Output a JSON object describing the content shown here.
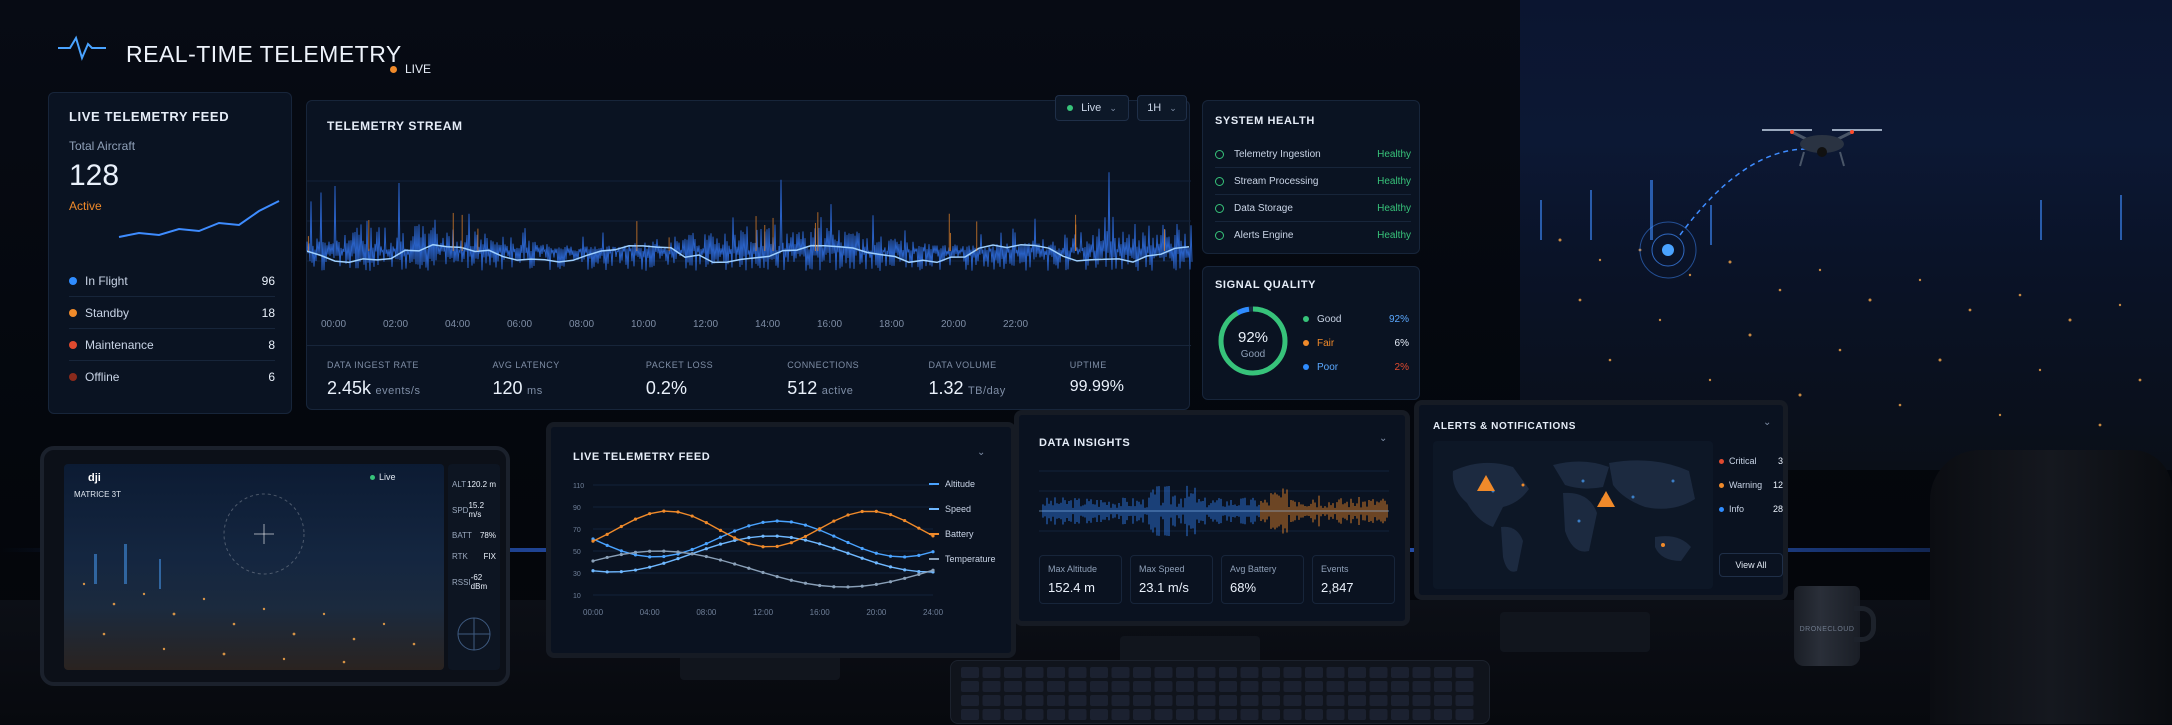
{
  "header": {
    "title": "REAL-TIME TELEMETRY",
    "live": "LIVE"
  },
  "feed": {
    "title": "LIVE TELEMETRY FEED",
    "total_label": "Total Aircraft",
    "total": "128",
    "active": "Active",
    "rows": [
      {
        "label": "In Flight",
        "value": "96",
        "color": "#2f8cff"
      },
      {
        "label": "Standby",
        "value": "18",
        "color": "#f08a2a"
      },
      {
        "label": "Maintenance",
        "value": "8",
        "color": "#e04a2f"
      },
      {
        "label": "Offline",
        "value": "6",
        "color": "#8a2a1c"
      }
    ]
  },
  "stream": {
    "title": "TELEMETRY STREAM",
    "live_btn": "Live",
    "range_btn": "1H",
    "ticks": [
      "00:00",
      "02:00",
      "04:00",
      "06:00",
      "08:00",
      "10:00",
      "12:00",
      "14:00",
      "16:00",
      "18:00",
      "20:00",
      "22:00"
    ],
    "metrics": [
      {
        "label": "DATA INGEST RATE",
        "value": "2.45k",
        "unit": "events/s"
      },
      {
        "label": "AVG LATENCY",
        "value": "120",
        "unit": "ms"
      },
      {
        "label": "PACKET LOSS",
        "value": "0.2%",
        "unit": ""
      },
      {
        "label": "CONNECTIONS",
        "value": "512",
        "unit": "active"
      },
      {
        "label": "DATA VOLUME",
        "value": "1.32",
        "unit": "TB/day"
      },
      {
        "label": "UPTIME",
        "value": "99.99%",
        "unit": ""
      }
    ]
  },
  "health": {
    "title": "SYSTEM HEALTH",
    "items": [
      {
        "label": "Telemetry Ingestion",
        "status": "Healthy"
      },
      {
        "label": "Stream Processing",
        "status": "Healthy"
      },
      {
        "label": "Data Storage",
        "status": "Healthy"
      },
      {
        "label": "Alerts Engine",
        "status": "Healthy"
      }
    ]
  },
  "signal": {
    "title": "SIGNAL QUALITY",
    "pct": "92%",
    "pct_label": "Good",
    "pct_value": 92,
    "items": [
      {
        "label": "Good",
        "value": "92%",
        "color": "#37c37a",
        "vcolor": "#5aa8ff"
      },
      {
        "label": "Fair",
        "value": "6%",
        "color": "#f08a2a",
        "vcolor": "#e6edf8"
      },
      {
        "label": "Poor",
        "value": "2%",
        "color": "#2f8cff",
        "vcolor": "#e04a2f"
      }
    ]
  },
  "tablet": {
    "brand": "dji",
    "model": "MATRICE 3T",
    "live": "Live",
    "stats": [
      {
        "label": "ALT",
        "value": "120.2 m"
      },
      {
        "label": "SPD",
        "value": "15.2 m/s"
      },
      {
        "label": "BATT",
        "value": "78%"
      },
      {
        "label": "RTK",
        "value": "FIX"
      },
      {
        "label": "RSSI",
        "value": "-62 dBm"
      }
    ]
  },
  "monitor1": {
    "title": "LIVE TELEMETRY FEED",
    "legend": [
      {
        "label": "Altitude",
        "color": "#4aa3ff"
      },
      {
        "label": "Speed",
        "color": "#6fb8ff"
      },
      {
        "label": "Battery",
        "color": "#f08a2a"
      },
      {
        "label": "Temperature",
        "color": "#8aa0b8"
      }
    ],
    "yticks": [
      "110",
      "90",
      "70",
      "50",
      "30",
      "10"
    ],
    "xticks": [
      "00:00",
      "04:00",
      "08:00",
      "12:00",
      "16:00",
      "20:00",
      "24:00"
    ]
  },
  "monitor2": {
    "title": "DATA INSIGHTS",
    "stats": [
      {
        "label": "Max Altitude",
        "value": "152.4 m"
      },
      {
        "label": "Max Speed",
        "value": "23.1 m/s"
      },
      {
        "label": "Avg Battery",
        "value": "68%"
      },
      {
        "label": "Events",
        "value": "2,847"
      }
    ]
  },
  "monitor3": {
    "title": "ALERTS & NOTIFICATIONS",
    "alerts": [
      {
        "label": "Critical",
        "value": "3",
        "color": "#e04a2f"
      },
      {
        "label": "Warning",
        "value": "12",
        "color": "#f08a2a"
      },
      {
        "label": "Info",
        "value": "28",
        "color": "#2f8cff"
      }
    ],
    "button": "View All"
  },
  "mug": {
    "text": "DRONECLOUD"
  }
}
